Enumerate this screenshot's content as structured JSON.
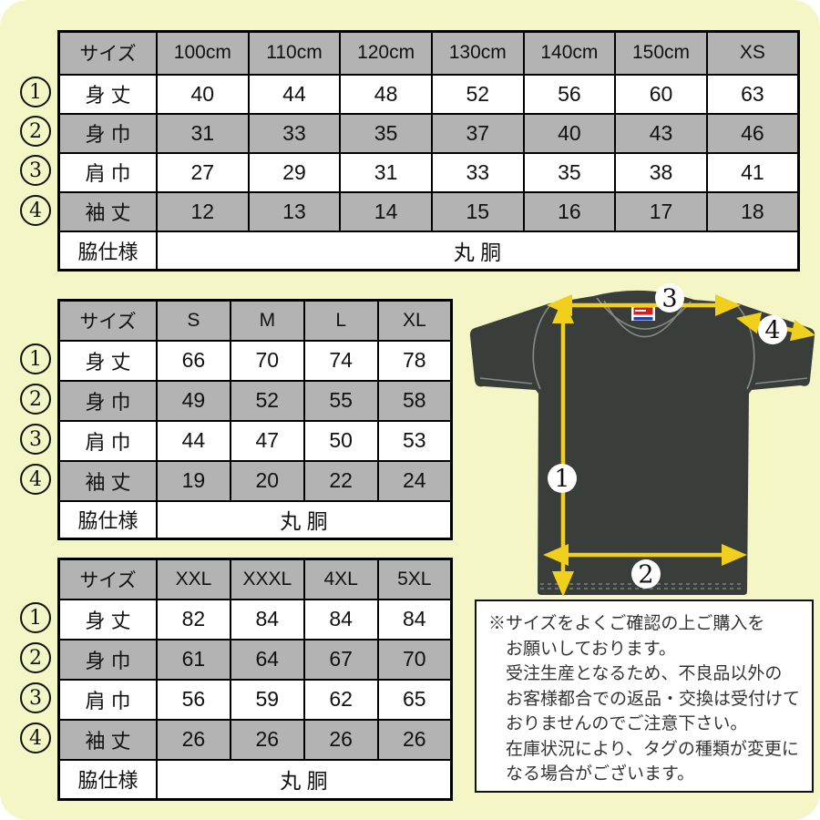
{
  "colors": {
    "background": "#f4f6c5",
    "table_header_gray": "#b3b3b3",
    "shirt_body": "#3a3e3b",
    "arrow_yellow": "#f0cf1d",
    "tag_red": "#cc2222",
    "tag_blue": "#2244aa"
  },
  "tables": [
    {
      "name": "kids-and-xs-size-table",
      "size_header": "サイズ",
      "sizes": [
        "100cm",
        "110cm",
        "120cm",
        "130cm",
        "140cm",
        "150cm",
        "XS"
      ],
      "rows": [
        {
          "circle": "1",
          "label": "身 丈",
          "values": [
            "40",
            "44",
            "48",
            "52",
            "56",
            "60",
            "63"
          ]
        },
        {
          "circle": "2",
          "label": "身 巾",
          "values": [
            "31",
            "33",
            "35",
            "37",
            "40",
            "43",
            "46"
          ]
        },
        {
          "circle": "3",
          "label": "肩 巾",
          "values": [
            "27",
            "29",
            "31",
            "33",
            "35",
            "38",
            "41"
          ]
        },
        {
          "circle": "4",
          "label": "袖 丈",
          "values": [
            "12",
            "13",
            "14",
            "15",
            "16",
            "17",
            "18"
          ]
        }
      ],
      "footer": {
        "label": "脇仕様",
        "value": "丸 胴"
      }
    },
    {
      "name": "adult-size-table",
      "size_header": "サイズ",
      "sizes": [
        "S",
        "M",
        "L",
        "XL"
      ],
      "rows": [
        {
          "circle": "1",
          "label": "身 丈",
          "values": [
            "66",
            "70",
            "74",
            "78"
          ]
        },
        {
          "circle": "2",
          "label": "身 巾",
          "values": [
            "49",
            "52",
            "55",
            "58"
          ]
        },
        {
          "circle": "3",
          "label": "肩 巾",
          "values": [
            "44",
            "47",
            "50",
            "53"
          ]
        },
        {
          "circle": "4",
          "label": "袖 丈",
          "values": [
            "19",
            "20",
            "22",
            "24"
          ]
        }
      ],
      "footer": {
        "label": "脇仕様",
        "value": "丸 胴"
      }
    },
    {
      "name": "big-size-table",
      "size_header": "サイズ",
      "sizes": [
        "XXL",
        "XXXL",
        "4XL",
        "5XL"
      ],
      "rows": [
        {
          "circle": "1",
          "label": "身 丈",
          "values": [
            "82",
            "84",
            "84",
            "84"
          ]
        },
        {
          "circle": "2",
          "label": "身 巾",
          "values": [
            "61",
            "64",
            "67",
            "70"
          ]
        },
        {
          "circle": "3",
          "label": "肩 巾",
          "values": [
            "56",
            "59",
            "62",
            "65"
          ]
        },
        {
          "circle": "4",
          "label": "袖 丈",
          "values": [
            "26",
            "26",
            "26",
            "26"
          ]
        }
      ],
      "footer": {
        "label": "脇仕様",
        "value": "丸 胴"
      }
    }
  ],
  "diagram": {
    "circles": [
      "1",
      "2",
      "3",
      "4"
    ]
  },
  "note": {
    "lines": [
      "※サイズをよくご確認の上ご購入を",
      "お願いしております。",
      "受注生産となるため、不良品以外の",
      "お客様都合での返品・交換は受付けて",
      "おりませんのでご注意下さい。",
      "在庫状況により、タグの種類が変更に",
      "なる場合がございます。"
    ]
  }
}
